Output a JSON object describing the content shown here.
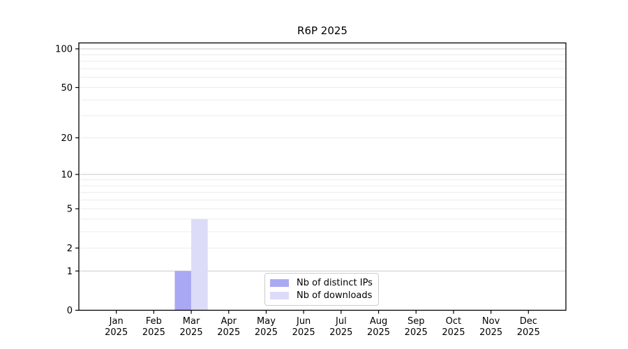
{
  "chart_data": {
    "type": "bar",
    "title": "R6P 2025",
    "year_label": "2025",
    "categories": [
      "Jan",
      "Feb",
      "Mar",
      "Apr",
      "May",
      "Jun",
      "Jul",
      "Aug",
      "Sep",
      "Oct",
      "Nov",
      "Dec"
    ],
    "series": [
      {
        "name": "Nb of distinct IPs",
        "color": "#a9a9f3",
        "values": [
          0,
          0,
          1,
          0,
          0,
          0,
          0,
          0,
          0,
          0,
          0,
          0
        ]
      },
      {
        "name": "Nb of downloads",
        "color": "#dcdcf8",
        "values": [
          0,
          0,
          4,
          0,
          0,
          0,
          0,
          0,
          0,
          0,
          0,
          0
        ]
      }
    ],
    "y_axis": {
      "scale": "log10(1+x)",
      "tick_values": [
        0,
        1,
        2,
        5,
        10,
        20,
        50,
        100
      ],
      "tick_labels": [
        "0",
        "1",
        "2",
        "5",
        "10",
        "20",
        "50",
        "100"
      ],
      "major_gridlines": [
        1,
        10,
        100
      ],
      "minor_gridlines": [
        2,
        3,
        4,
        5,
        6,
        7,
        8,
        9,
        20,
        30,
        40,
        50,
        60,
        70,
        80,
        90
      ],
      "range_top_value": 110
    },
    "x_axis": {
      "label_line2": "2025"
    },
    "legend": {
      "position": "inside-bottom-center"
    },
    "colors": {
      "grid_major": "#c9c9c9",
      "grid_minor": "#ebebeb",
      "axis": "#000000",
      "background": "#ffffff"
    },
    "grid": true
  }
}
